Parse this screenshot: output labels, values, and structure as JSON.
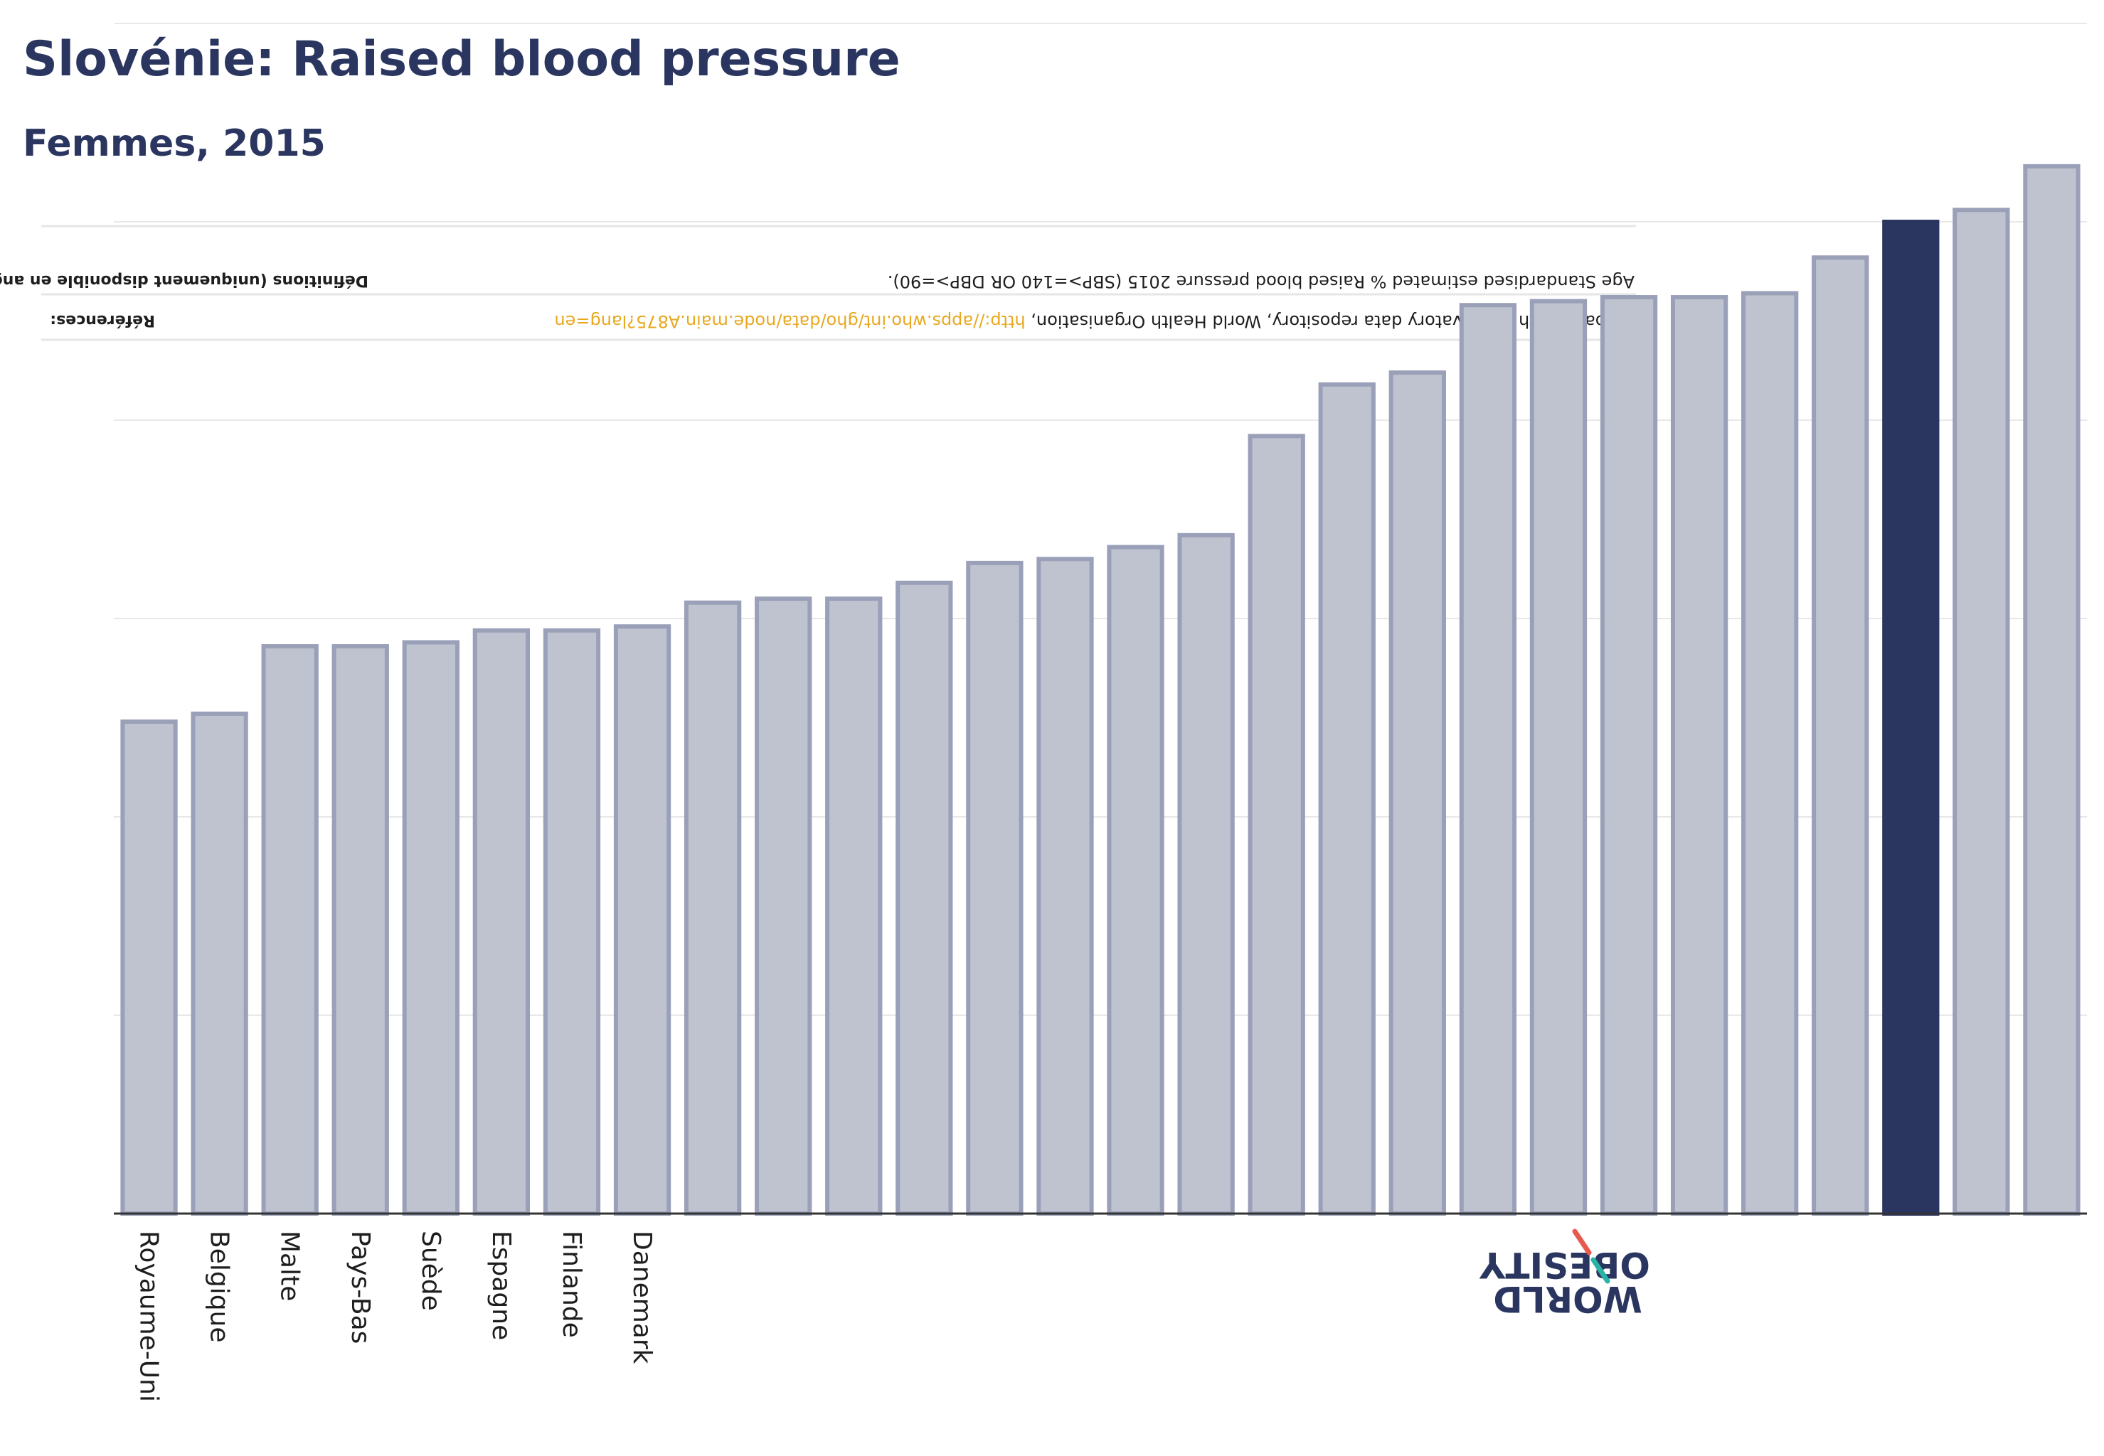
{
  "header": {
    "title": "Slovénie: Raised blood pressure",
    "subtitle": "Femmes, 2015"
  },
  "info_box": {
    "definitions_label": "Définitions (uniquement disponible en anglais):",
    "definitions_text": "Age Standardised estimated % Raised blood pressure 2015 (SBP>=140 OR DBP>=90).",
    "references_label": "Références:",
    "references_text": "Global Health Observatory data repository, World Health Organisation, ",
    "references_link": "http://apps.who.int/gho/data/node.main.A875?lang=en"
  },
  "logo": {
    "line1": "OBESITY",
    "line2": "WORLD"
  },
  "colors": {
    "bar_default": "#bfc2cf",
    "bar_stroke": "#9aa0b8",
    "bar_highlight": "#2b3660",
    "title": "#2b3660",
    "link": "#e8a820",
    "logo_accent_red": "#e85a4f",
    "logo_accent_teal": "#2ab3a6"
  },
  "chart_data": {
    "type": "bar",
    "categories": [
      "Royaume-Uni",
      "Belgique",
      "Malte",
      "Pays-Bas",
      "Suède",
      "Espagne",
      "Finlande",
      "Danemark",
      "",
      "",
      "",
      "",
      "",
      "",
      "",
      "",
      "",
      "",
      "",
      "",
      "",
      "",
      "",
      "",
      "",
      "",
      "",
      ""
    ],
    "values": [
      12.4,
      12.6,
      14.3,
      14.3,
      14.4,
      14.7,
      14.7,
      14.8,
      15.4,
      15.5,
      15.5,
      15.9,
      16.4,
      16.5,
      16.8,
      17.1,
      19.6,
      20.9,
      21.2,
      22.9,
      23.0,
      23.1,
      23.1,
      23.2,
      24.1,
      25.0,
      25.3,
      26.4
    ],
    "highlight_index": 25,
    "ylim": [
      0,
      30
    ],
    "grid": true,
    "xlabel": "",
    "ylabel": ""
  }
}
